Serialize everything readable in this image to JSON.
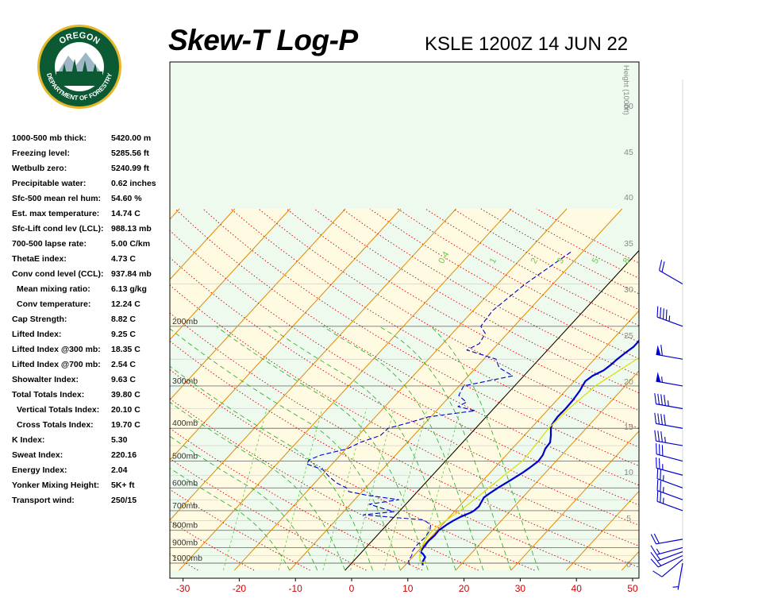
{
  "header": {
    "title": "Skew-T Log-P",
    "station": "KSLE 1200Z 14 JUN 22"
  },
  "logo": {
    "top_text": "OREGON",
    "bottom_text": "DEPARTMENT OF FORESTRY"
  },
  "stats": [
    {
      "label": "1000-500 mb thick:",
      "value": "5420.00 m"
    },
    {
      "label": "Freezing level:",
      "value": "5285.56 ft"
    },
    {
      "label": "Wetbulb zero:",
      "value": "5240.99 ft"
    },
    {
      "label": "Precipitable water:",
      "value": "0.62 inches"
    },
    {
      "label": "Sfc-500 mean rel hum:",
      "value": "54.60 %"
    },
    {
      "label": "Est. max temperature:",
      "value": "14.74 C"
    },
    {
      "label": "Sfc-Lift cond lev (LCL):",
      "value": "988.13 mb"
    },
    {
      "label": "700-500 lapse rate:",
      "value": "5.00 C/km"
    },
    {
      "label": "ThetaE index:",
      "value": "4.73 C"
    },
    {
      "label": "Conv cond level (CCL):",
      "value": "937.84 mb"
    },
    {
      "label": "Mean mixing ratio:",
      "value": "6.13 g/kg",
      "indent": true
    },
    {
      "label": "Conv temperature:",
      "value": "12.24 C",
      "indent": true
    },
    {
      "label": "Cap Strength:",
      "value": "8.82 C"
    },
    {
      "label": "Lifted Index:",
      "value": "9.25 C"
    },
    {
      "label": "Lifted Index @300 mb:",
      "value": "18.35 C"
    },
    {
      "label": "Lifted Index @700 mb:",
      "value": "2.54 C"
    },
    {
      "label": "Showalter Index:",
      "value": "9.63 C"
    },
    {
      "label": "Total Totals Index:",
      "value": "39.80 C"
    },
    {
      "label": "Vertical Totals Index:",
      "value": "20.10 C",
      "indent": true
    },
    {
      "label": "Cross Totals Index:",
      "value": "19.70 C",
      "indent": true
    },
    {
      "label": "K Index:",
      "value": "5.30"
    },
    {
      "label": "Sweat Index:",
      "value": "220.16"
    },
    {
      "label": "Energy Index:",
      "value": "2.04"
    },
    {
      "label": "Yonker Mixing Height:",
      "value": "5K+ ft"
    },
    {
      "label": "Transport wind:",
      "value": "250/15"
    }
  ],
  "chart_data": {
    "type": "line",
    "title": "Skew-T Log-P",
    "subtitle": "KSLE 1200Z 14 JUN 22",
    "x_axis": {
      "unit": "C",
      "ticks": [
        -30,
        -20,
        -10,
        0,
        10,
        20,
        30,
        40,
        50
      ]
    },
    "pressure_levels": [
      {
        "p": 1000,
        "label": "1000mb"
      },
      {
        "p": 900,
        "label": "900mb"
      },
      {
        "p": 800,
        "label": "800mb"
      },
      {
        "p": 700,
        "label": "700mb"
      },
      {
        "p": 600,
        "label": "600mb"
      },
      {
        "p": 500,
        "label": "500mb"
      },
      {
        "p": 400,
        "label": "400mb"
      },
      {
        "p": 300,
        "label": "300mb"
      },
      {
        "p": 200,
        "label": "200mb"
      }
    ],
    "height_axis": {
      "label": "Height (1000ft)",
      "ticks": [
        0,
        5,
        10,
        15,
        20,
        25,
        30,
        35,
        40,
        45,
        50
      ]
    },
    "mixing_ratio_labels": [
      "0.4",
      "1",
      "2",
      "3",
      "5",
      "8"
    ],
    "series": [
      {
        "kind": "temperature",
        "color": "#0000cc",
        "points": [
          [
            1015,
            13.2
          ],
          [
            990,
            12.6
          ],
          [
            960,
            12.3
          ],
          [
            940,
            11.4
          ],
          [
            925,
            10.5
          ],
          [
            900,
            10.4
          ],
          [
            860,
            10.2
          ],
          [
            830,
            10.4
          ],
          [
            800,
            10.3
          ],
          [
            770,
            10.8
          ],
          [
            750,
            11.3
          ],
          [
            730,
            12.0
          ],
          [
            710,
            13.1
          ],
          [
            700,
            13.4
          ],
          [
            680,
            13.6
          ],
          [
            660,
            13.3
          ],
          [
            640,
            13.0
          ],
          [
            620,
            13.4
          ],
          [
            600,
            13.9
          ],
          [
            570,
            14.9
          ],
          [
            540,
            15.9
          ],
          [
            520,
            16.4
          ],
          [
            500,
            16.8
          ],
          [
            480,
            16.6
          ],
          [
            460,
            16.0
          ],
          [
            440,
            15.8
          ],
          [
            420,
            14.8
          ],
          [
            400,
            13.6
          ],
          [
            390,
            13.2
          ],
          [
            370,
            12.9
          ],
          [
            350,
            13.0
          ],
          [
            330,
            12.9
          ],
          [
            310,
            12.6
          ],
          [
            300,
            12.3
          ],
          [
            290,
            12.0
          ],
          [
            280,
            12.4
          ],
          [
            270,
            13.5
          ],
          [
            260,
            13.9
          ],
          [
            250,
            14.1
          ],
          [
            240,
            14.5
          ],
          [
            230,
            15.0
          ],
          [
            220,
            15.0
          ],
          [
            210,
            15.3
          ],
          [
            200,
            15.6
          ],
          [
            180,
            19.5
          ],
          [
            160,
            24.0
          ],
          [
            140,
            29.0
          ],
          [
            120,
            35.5
          ]
        ]
      },
      {
        "kind": "dewpoint",
        "color": "#0000cc",
        "dashed": true,
        "points": [
          [
            1012,
            10.7
          ],
          [
            980,
            9.8
          ],
          [
            950,
            9.6
          ],
          [
            920,
            9.0
          ],
          [
            880,
            8.8
          ],
          [
            840,
            9.0
          ],
          [
            800,
            8.7
          ],
          [
            770,
            7.9
          ],
          [
            745,
            5.8
          ],
          [
            735,
            1.0
          ],
          [
            725,
            -3.6
          ],
          [
            720,
            -5.9
          ],
          [
            705,
            -0.9
          ],
          [
            690,
            -3.4
          ],
          [
            670,
            -6.6
          ],
          [
            650,
            -2.0
          ],
          [
            630,
            -8.6
          ],
          [
            615,
            -12.4
          ],
          [
            600,
            -13.4
          ],
          [
            580,
            -16.0
          ],
          [
            555,
            -18.5
          ],
          [
            530,
            -20.7
          ],
          [
            510,
            -24.6
          ],
          [
            495,
            -24.8
          ],
          [
            480,
            -23.5
          ],
          [
            460,
            -19.8
          ],
          [
            440,
            -18.5
          ],
          [
            420,
            -16.0
          ],
          [
            400,
            -15.8
          ],
          [
            385,
            -13.0
          ],
          [
            370,
            -10.4
          ],
          [
            355,
            -3.0
          ],
          [
            345,
            -6.8
          ],
          [
            335,
            -6.0
          ],
          [
            320,
            -8.5
          ],
          [
            300,
            -9.2
          ],
          [
            280,
            -2.0
          ],
          [
            265,
            -5.8
          ],
          [
            250,
            -7.8
          ],
          [
            245,
            -10.0
          ],
          [
            235,
            -14.6
          ],
          [
            225,
            -13.4
          ],
          [
            210,
            -14.0
          ],
          [
            200,
            -16.0
          ],
          [
            180,
            -16.5
          ],
          [
            150,
            -15.0
          ],
          [
            120,
            -12.0
          ]
        ]
      },
      {
        "kind": "parcel",
        "color": "#dddd00",
        "points": [
          [
            1000,
            13.2
          ],
          [
            990,
            12.2
          ],
          [
            960,
            11.3
          ],
          [
            930,
            10.6
          ],
          [
            900,
            10.0
          ],
          [
            860,
            9.5
          ],
          [
            820,
            9.2
          ],
          [
            780,
            9.4
          ],
          [
            740,
            10.1
          ],
          [
            700,
            10.9
          ],
          [
            650,
            11.6
          ],
          [
            600,
            12.3
          ],
          [
            550,
            13.0
          ],
          [
            500,
            13.9
          ],
          [
            450,
            13.6
          ],
          [
            400,
            13.2
          ],
          [
            350,
            13.6
          ],
          [
            300,
            14.6
          ],
          [
            250,
            17.6
          ],
          [
            200,
            22.5
          ]
        ]
      }
    ],
    "wind_barbs": [
      {
        "p": 1000,
        "dir": 190,
        "kt": 5
      },
      {
        "p": 975,
        "dir": 230,
        "kt": 10
      },
      {
        "p": 950,
        "dir": 245,
        "kt": 15
      },
      {
        "p": 925,
        "dir": 250,
        "kt": 15
      },
      {
        "p": 900,
        "dir": 255,
        "kt": 15
      },
      {
        "p": 850,
        "dir": 260,
        "kt": 20
      },
      {
        "p": 700,
        "dir": 290,
        "kt": 25
      },
      {
        "p": 650,
        "dir": 290,
        "kt": 25
      },
      {
        "p": 600,
        "dir": 290,
        "kt": 25
      },
      {
        "p": 550,
        "dir": 285,
        "kt": 25
      },
      {
        "p": 500,
        "dir": 285,
        "kt": 30
      },
      {
        "p": 450,
        "dir": 280,
        "kt": 35
      },
      {
        "p": 400,
        "dir": 280,
        "kt": 40
      },
      {
        "p": 350,
        "dir": 280,
        "kt": 45
      },
      {
        "p": 300,
        "dir": 280,
        "kt": 55
      },
      {
        "p": 250,
        "dir": 280,
        "kt": 60
      },
      {
        "p": 200,
        "dir": 290,
        "kt": 45
      },
      {
        "p": 150,
        "dir": 300,
        "kt": 20
      }
    ]
  },
  "colors": {
    "temperature": "#0000cc",
    "dewpoint": "#0000cc",
    "parcel": "#dddd00",
    "isotherm": "#e08a00",
    "dry_adiabat": "#cc0000",
    "moist_adiabat": "#22aa22",
    "mixing_ratio": "#66cc44",
    "band_warm": "#fffbe3",
    "band_cool": "#eefaee",
    "tick_label": "#cc0000",
    "height_label": "#888888",
    "logo_green": "#0b5a34",
    "logo_gold": "#e5b829"
  }
}
